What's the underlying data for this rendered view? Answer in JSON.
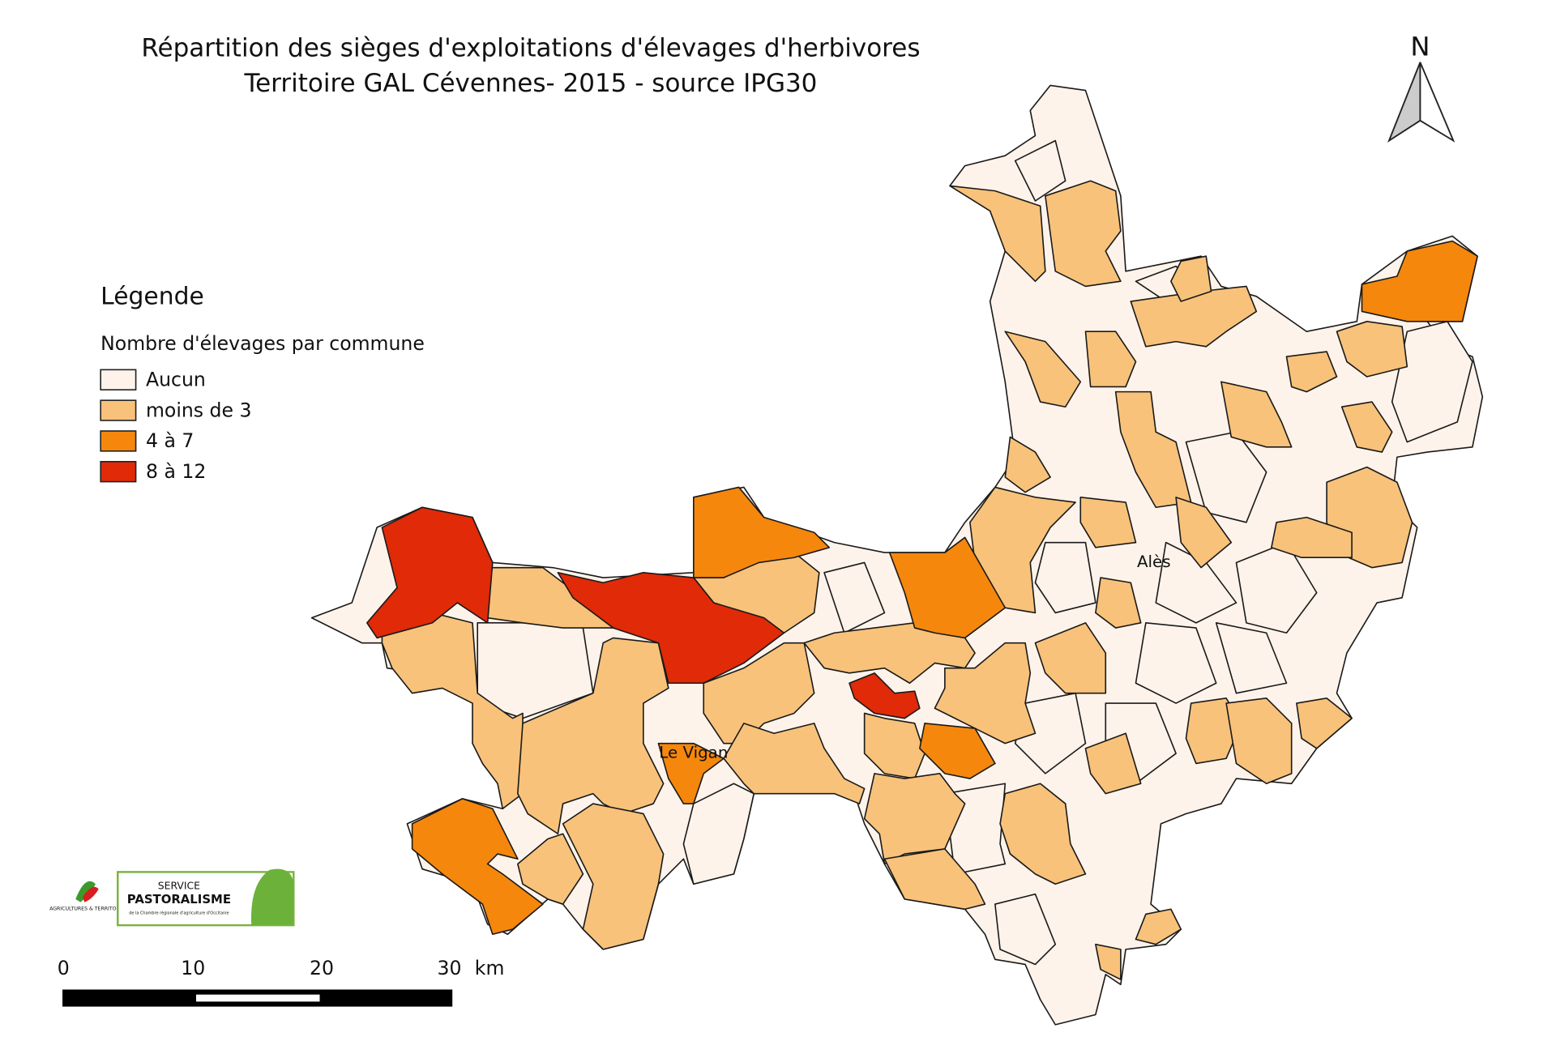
{
  "title": {
    "line1": "Répartition des sièges d'exploitations d'élevages d'herbivores",
    "line2": "Territoire GAL Cévennes- 2015 - source IPG30"
  },
  "north": "N",
  "legend": {
    "title": "Légende",
    "subtitle": "Nombre d'élevages par commune",
    "items": [
      {
        "label": "Aucun",
        "color": "#fdf3ea"
      },
      {
        "label": "moins de 3",
        "color": "#f8c27a"
      },
      {
        "label": "4 à 7",
        "color": "#f5870d"
      },
      {
        "label": "8 à 12",
        "color": "#e02a08"
      }
    ]
  },
  "places": [
    "Alès",
    "Le Vigan"
  ],
  "scale_bar": {
    "labels": [
      "0",
      "10",
      "20",
      "30"
    ],
    "unit": "km"
  },
  "logos": {
    "left": "AGRICULTURES & TERRITOIRES",
    "service": "SERVICE",
    "name": "PASTORALISME",
    "sub": "de la Chambre régionale d'agriculture d'Occitanie"
  }
}
